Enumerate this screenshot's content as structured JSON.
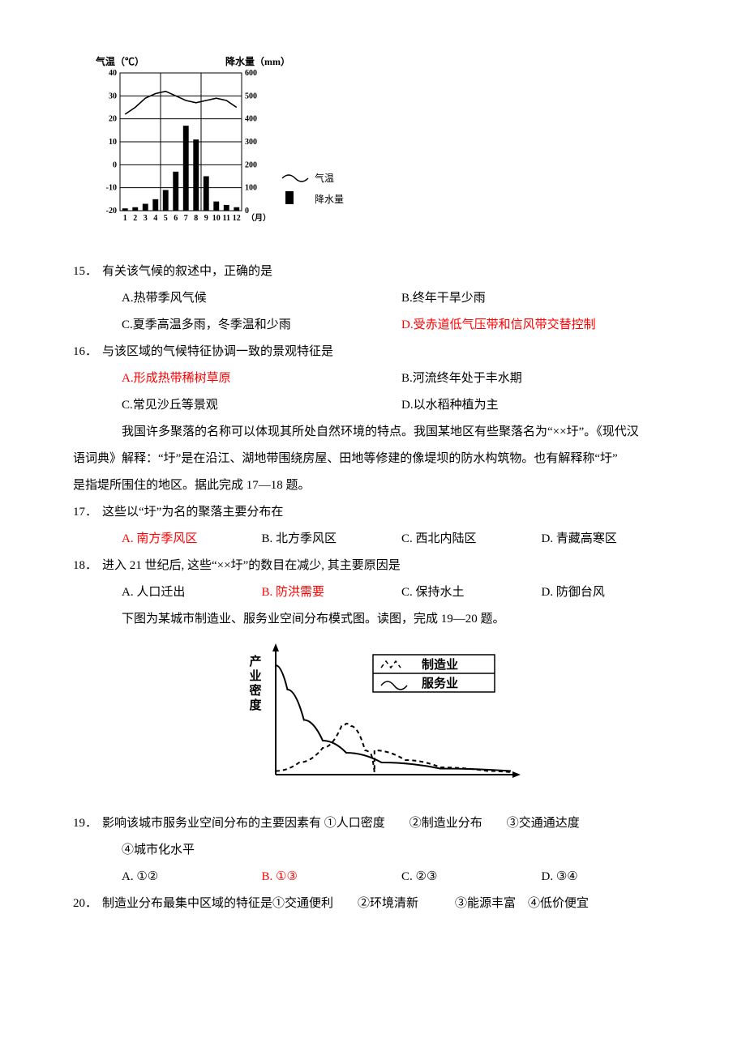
{
  "climate_chart": {
    "type": "combo-bar-line",
    "y1_label": "气温（℃）",
    "y1_label_fontsize": 12,
    "y2_label": "降水量（mm）",
    "y2_label_fontsize": 12,
    "x_label_suffix": "（月）",
    "x_label_fontsize": 11,
    "y1_lim": [
      -20,
      40
    ],
    "y1_ticks": [
      -20,
      -10,
      0,
      10,
      20,
      30,
      40
    ],
    "y2_lim": [
      0,
      600
    ],
    "y2_ticks": [
      0,
      100,
      200,
      300,
      400,
      500,
      600
    ],
    "months": [
      "1",
      "2",
      "3",
      "4",
      "5",
      "6",
      "7",
      "8",
      "9",
      "10",
      "11",
      "12"
    ],
    "precip": [
      10,
      15,
      30,
      50,
      90,
      170,
      370,
      310,
      150,
      40,
      25,
      15
    ],
    "temp": [
      22,
      25,
      29,
      31,
      32,
      30,
      28,
      27,
      28,
      29,
      28,
      25
    ],
    "bar_color": "#000000",
    "line_color": "#000000",
    "line_width": 1.6,
    "bar_width_ratio": 0.55,
    "grid_color": "#000000",
    "tick_fontsize": 10,
    "legend": {
      "temp": "气温",
      "precip": "降水量"
    },
    "legend_fontsize": 12
  },
  "q15": {
    "num": "15．",
    "stem": "有关该气候的叙述中，正确的是",
    "A": "A.热带季风气候",
    "B": "B.终年干旱少雨",
    "C": "C.夏季高温多雨，冬季温和少雨",
    "D": "D.受赤道低气压带和信风带交替控制"
  },
  "q16": {
    "num": "16．",
    "stem": "与该区域的气候特征协调一致的景观特征是",
    "A": "A.形成热带稀树草原",
    "B": "B.河流终年处于丰水期",
    "C": "C.常见沙丘等景观",
    "D": "D.以水稻种植为主"
  },
  "passage1": {
    "p1": "我国许多聚落的名称可以体现其所处自然环境的特点。我国某地区有些聚落名为“××圩”。《现代汉",
    "p2": "语词典》解释：“圩”是在沿江、湖地带围绕房屋、田地等修建的像堤坝的防水构筑物。也有解释称“圩”",
    "p3": "是指堤所围住的地区。据此完成 17—18 题。"
  },
  "q17": {
    "num": "17．",
    "stem": "这些以“圩”为名的聚落主要分布在",
    "A": "A. 南方季风区",
    "B": "B. 北方季风区",
    "C": "C. 西北内陆区",
    "D": "D. 青藏高寒区"
  },
  "q18": {
    "num": "18．",
    "stem": "进入 21 世纪后, 这些“××圩”的数目在减少, 其主要原因是",
    "A": "A. 人口迁出",
    "B": "B. 防洪需要",
    "C": "C. 保持水土",
    "D": "D. 防御台风"
  },
  "passage2": "下图为某城市制造业、服务业空间分布模式图。读图，完成 19—20 题。",
  "density_chart": {
    "type": "line",
    "y_label": "产业密度",
    "y_label_fontsize": 15,
    "y_label_bold": true,
    "x_axis_label": "",
    "legend": {
      "mfg": "制造业",
      "svc": "服务业"
    },
    "legend_fontsize": 15,
    "legend_bold": true,
    "line_width": 2,
    "line_color": "#000000",
    "dash_pattern": "5,4",
    "service_points": [
      [
        0,
        90
      ],
      [
        5,
        70
      ],
      [
        12,
        45
      ],
      [
        20,
        28
      ],
      [
        30,
        18
      ],
      [
        45,
        10
      ],
      [
        70,
        5
      ],
      [
        100,
        3
      ]
    ],
    "mfg_points": [
      [
        0,
        3
      ],
      [
        10,
        10
      ],
      [
        20,
        22
      ],
      [
        28,
        40
      ],
      [
        30,
        42
      ],
      [
        32,
        40
      ],
      [
        38,
        20
      ],
      [
        40,
        18
      ],
      [
        42,
        2
      ],
      [
        42,
        20
      ],
      [
        55,
        12
      ],
      [
        70,
        6
      ],
      [
        90,
        3
      ],
      [
        100,
        2
      ]
    ],
    "xlim": [
      0,
      100
    ],
    "ylim": [
      0,
      100
    ],
    "mfg_dash_left_x": 30,
    "mfg_peak_x": 30
  },
  "q19": {
    "num": "19．",
    "stem": "影响该城市服务业空间分布的主要因素有  ①人口密度　　②制造业分布　　③交通通达度",
    "stem2": "④城市化水平",
    "A": "A.  ①②",
    "B": "B.  ①③",
    "C": "C.  ②③",
    "D": "D.  ③④"
  },
  "q20": {
    "num": "20．",
    "stem": "制造业分布最集中区域的特征是①交通便利　　②环境清新　　　③能源丰富　④低价便宜"
  }
}
